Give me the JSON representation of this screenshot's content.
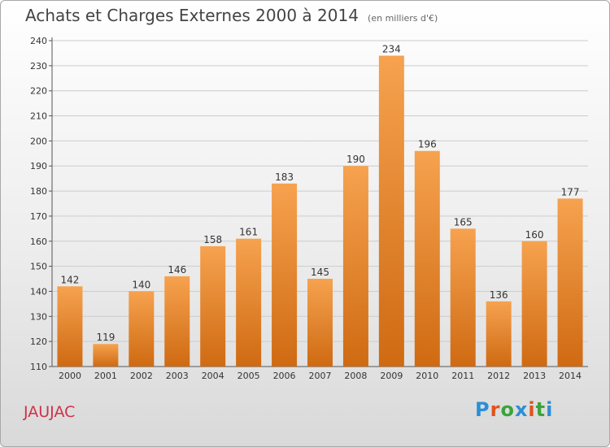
{
  "chart_data": {
    "type": "bar",
    "title": "Achats et Charges Externes 2000 à 2014",
    "subtitle": "(en milliers d'€)",
    "categories": [
      "2000",
      "2001",
      "2002",
      "2003",
      "2004",
      "2005",
      "2006",
      "2007",
      "2008",
      "2009",
      "2010",
      "2011",
      "2012",
      "2013",
      "2014"
    ],
    "values": [
      142,
      119,
      140,
      146,
      158,
      161,
      183,
      145,
      190,
      234,
      196,
      165,
      136,
      160,
      177
    ],
    "ylim": [
      110,
      240
    ],
    "yticks": [
      110,
      120,
      130,
      140,
      150,
      160,
      170,
      180,
      190,
      200,
      210,
      220,
      230,
      240
    ],
    "grid": true,
    "bar_color_top": "#f6a24f",
    "bar_color_bottom": "#cf6a12"
  },
  "commune_label": "JAUJAC",
  "logo": {
    "text": "Proxiti",
    "letter_colors": [
      "#2b8fd6",
      "#e0531c",
      "#3aa43a",
      "#2b8fd6",
      "#e0531c",
      "#3aa43a",
      "#2b8fd6"
    ]
  }
}
